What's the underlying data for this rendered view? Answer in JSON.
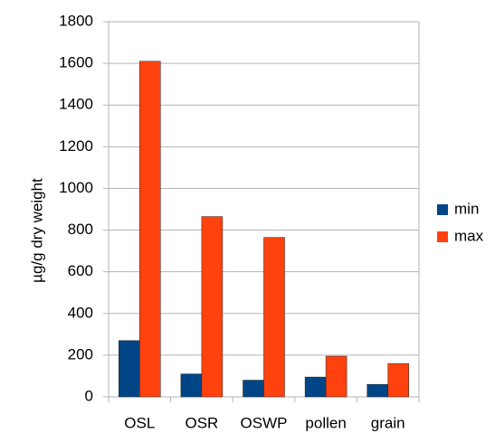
{
  "chart_data": {
    "type": "bar",
    "y_label": "µg/g dry weight",
    "categories": [
      "OSL",
      "OSR",
      "OSWP",
      "pollen",
      "grain"
    ],
    "series": [
      {
        "name": "min",
        "color": "#004586",
        "values": [
          270,
          110,
          80,
          95,
          60
        ]
      },
      {
        "name": "max",
        "color": "#ff420e",
        "values": [
          1610,
          865,
          765,
          195,
          160
        ]
      }
    ],
    "ylim": [
      0,
      1800
    ],
    "yticks": [
      0,
      200,
      400,
      600,
      800,
      1000,
      1200,
      1400,
      1600,
      1800
    ],
    "grid": true,
    "legend": "right"
  }
}
